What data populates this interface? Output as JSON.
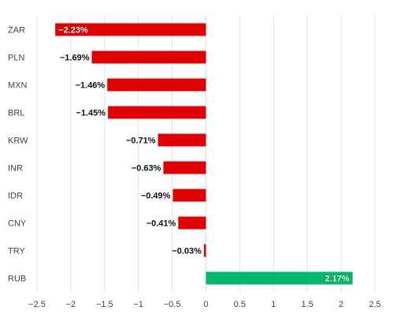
{
  "chart_data": {
    "type": "bar",
    "orientation": "horizontal",
    "categories": [
      "ZAR",
      "PLN",
      "MXN",
      "BRL",
      "KRW",
      "INR",
      "IDR",
      "CNY",
      "TRY",
      "RUB"
    ],
    "values": [
      -2.23,
      -1.69,
      -1.46,
      -1.45,
      -0.71,
      -0.63,
      -0.49,
      -0.41,
      -0.03,
      2.17
    ],
    "value_labels": [
      "−2.23%",
      "−1.69%",
      "−1.46%",
      "−1.45%",
      "−0.71%",
      "−0.63%",
      "−0.49%",
      "−0.41%",
      "−0.03%",
      "2.17%"
    ],
    "x_ticks": [
      -2.5,
      -2,
      -1.5,
      -1,
      -0.5,
      0,
      0.5,
      1,
      1.5,
      2,
      2.5
    ],
    "x_tick_labels": [
      "−2.5",
      "−2",
      "−1.5",
      "−1",
      "−0.5",
      "0",
      "0.5",
      "1",
      "1.5",
      "2",
      "2.5"
    ],
    "xlim": [
      -2.5,
      2.5
    ],
    "title": "",
    "xlabel": "",
    "ylabel": "",
    "grid": true,
    "legend": "none",
    "colors": {
      "negative": "#e00000",
      "positive": "#00b86b",
      "grid": "#dde3ec",
      "axis_text": "#444444"
    }
  }
}
